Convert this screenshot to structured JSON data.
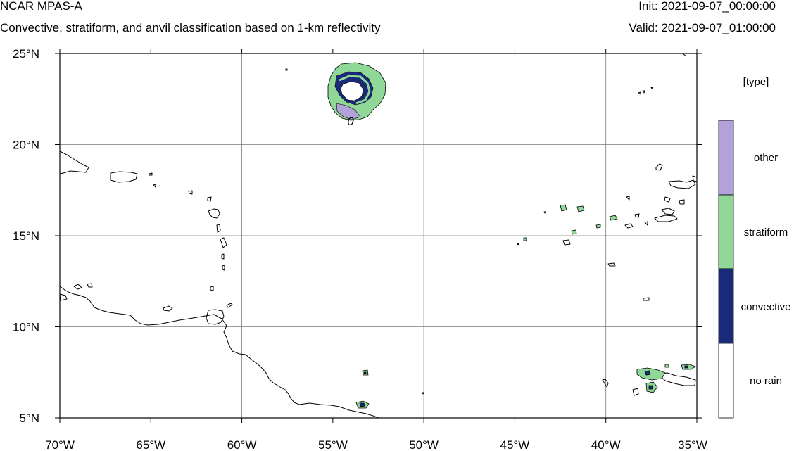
{
  "header": {
    "title": "NCAR MPAS-A",
    "subtitle": "Convective, stratiform, and anvil classification based on 1-km reflectivity",
    "init": "Init: 2021-09-07_00:00:00",
    "valid": "Valid: 2021-09-07_01:00:00"
  },
  "map": {
    "lon_range": [
      -70,
      -35
    ],
    "lat_range": [
      5,
      25
    ],
    "x_ticks": [
      "70°W",
      "65°W",
      "60°W",
      "55°W",
      "50°W",
      "45°W",
      "40°W",
      "35°W"
    ],
    "y_ticks": [
      "25°N",
      "20°N",
      "15°N",
      "10°N",
      "5°N"
    ],
    "grid": true,
    "contour_label": "0"
  },
  "legend": {
    "title": "[type]",
    "items": [
      {
        "label": "other",
        "color": "#b3a2d9"
      },
      {
        "label": "stratiform",
        "color": "#8fd897"
      },
      {
        "label": "convective",
        "color": "#1b2a78"
      },
      {
        "label": "no rain",
        "color": "#ffffff"
      }
    ]
  },
  "colors": {
    "other": "#b3a2d9",
    "stratiform": "#8fd897",
    "convective": "#1b2a78",
    "no_rain": "#ffffff",
    "grid": "#666666",
    "coastline": "#000000"
  }
}
